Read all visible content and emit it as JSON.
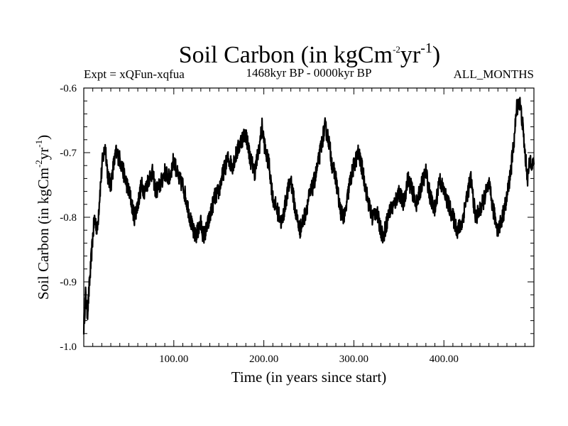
{
  "chart_data": {
    "type": "line",
    "title": {
      "main": "Soil Carbon (in kgCm",
      "sup1": "-2",
      "mid": "yr",
      "sup2": "-1",
      "end": ")"
    },
    "experiment": "Expt = xQFun-xqfua",
    "period": "1468kyr BP - 0000kyr BP",
    "season": "ALL_MONTHS",
    "xlabel": "Time (in years since start)",
    "ylabel": {
      "main": "Soil Carbon (in kgCm",
      "sup1": "-2",
      "mid": "yr",
      "sup2": "-1",
      "end": ")"
    },
    "xlim": [
      0,
      500
    ],
    "ylim": [
      -1.0,
      -0.6
    ],
    "x_ticks": [
      100,
      200,
      300,
      400
    ],
    "x_tick_labels": [
      "100.00",
      "200.00",
      "300.00",
      "400.00"
    ],
    "y_ticks": [
      -1.0,
      -0.9,
      -0.8,
      -0.7,
      -0.6
    ],
    "y_tick_labels": [
      "-1.0",
      "-0.9",
      "-0.8",
      "-0.7",
      "-0.6"
    ],
    "line_color": "#000000",
    "series": [
      {
        "name": "Soil Carbon",
        "x": [
          0,
          2,
          4,
          6,
          8,
          10,
          12,
          15,
          18,
          21,
          24,
          27,
          30,
          33,
          36,
          40,
          44,
          48,
          52,
          56,
          60,
          64,
          68,
          72,
          76,
          80,
          85,
          90,
          95,
          100,
          105,
          110,
          115,
          118,
          121,
          124,
          127,
          130,
          133,
          136,
          140,
          145,
          150,
          155,
          160,
          165,
          170,
          175,
          180,
          185,
          190,
          195,
          198,
          202,
          206,
          210,
          215,
          220,
          225,
          230,
          235,
          240,
          245,
          250,
          255,
          260,
          265,
          268,
          272,
          276,
          280,
          285,
          290,
          295,
          300,
          305,
          310,
          315,
          320,
          325,
          330,
          333,
          336,
          340,
          345,
          350,
          355,
          360,
          365,
          370,
          375,
          380,
          385,
          390,
          395,
          400,
          405,
          410,
          415,
          420,
          425,
          430,
          435,
          440,
          445,
          450,
          455,
          460,
          465,
          470,
          475,
          478,
          481,
          484,
          487,
          490,
          493,
          496,
          500
        ],
        "values": [
          -0.97,
          -0.92,
          -0.95,
          -0.91,
          -0.87,
          -0.83,
          -0.8,
          -0.82,
          -0.76,
          -0.71,
          -0.69,
          -0.74,
          -0.75,
          -0.72,
          -0.7,
          -0.71,
          -0.73,
          -0.75,
          -0.77,
          -0.8,
          -0.78,
          -0.75,
          -0.76,
          -0.74,
          -0.73,
          -0.76,
          -0.75,
          -0.73,
          -0.74,
          -0.71,
          -0.74,
          -0.75,
          -0.78,
          -0.8,
          -0.82,
          -0.83,
          -0.82,
          -0.81,
          -0.83,
          -0.82,
          -0.8,
          -0.77,
          -0.76,
          -0.73,
          -0.71,
          -0.72,
          -0.7,
          -0.68,
          -0.67,
          -0.71,
          -0.73,
          -0.69,
          -0.66,
          -0.7,
          -0.72,
          -0.77,
          -0.79,
          -0.81,
          -0.77,
          -0.74,
          -0.79,
          -0.82,
          -0.8,
          -0.77,
          -0.75,
          -0.72,
          -0.68,
          -0.66,
          -0.68,
          -0.72,
          -0.74,
          -0.79,
          -0.8,
          -0.75,
          -0.72,
          -0.7,
          -0.73,
          -0.77,
          -0.8,
          -0.79,
          -0.82,
          -0.83,
          -0.81,
          -0.79,
          -0.78,
          -0.76,
          -0.78,
          -0.74,
          -0.76,
          -0.78,
          -0.75,
          -0.73,
          -0.77,
          -0.79,
          -0.74,
          -0.76,
          -0.78,
          -0.8,
          -0.82,
          -0.81,
          -0.77,
          -0.74,
          -0.8,
          -0.79,
          -0.77,
          -0.75,
          -0.79,
          -0.82,
          -0.8,
          -0.77,
          -0.72,
          -0.68,
          -0.63,
          -0.62,
          -0.65,
          -0.7,
          -0.74,
          -0.71,
          -0.72
        ]
      }
    ]
  }
}
